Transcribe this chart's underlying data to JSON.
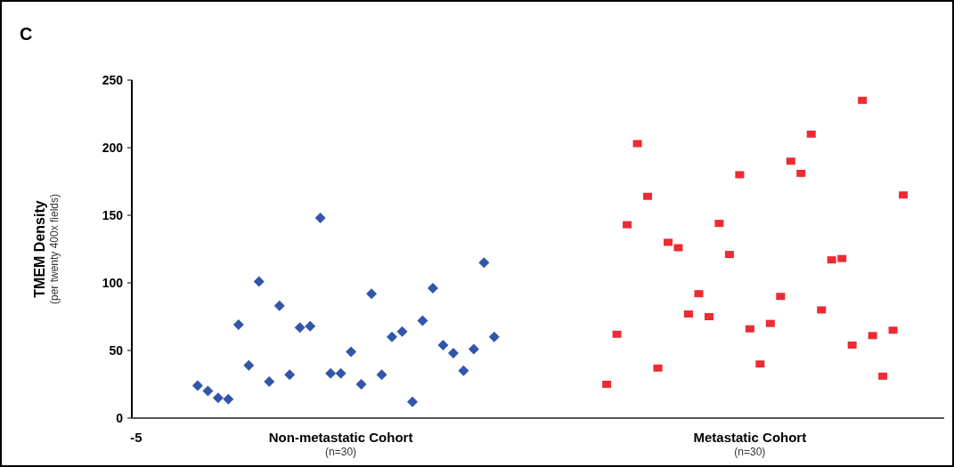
{
  "chart_data": {
    "type": "scatter",
    "title": "C",
    "ylabel": "TMEM Density$_{(per twenty 400x fields)}$",
    "categories": [
      "-5",
      null,
      null,
      null,
      null,
      null,
      null,
      null,
      null,
      null,
      null,
      null,
      null,
      null,
      null,
      null,
      null,
      null,
      null,
      null,
      "Non-metastatic Cohort$_{(n=30)}$",
      null,
      null,
      null,
      null,
      null,
      null,
      null,
      null,
      null,
      null,
      null,
      null,
      null,
      null,
      null,
      null,
      null,
      null,
      null,
      null,
      null,
      null,
      null,
      null,
      null,
      null,
      null,
      null,
      null,
      null,
      null,
      null,
      null,
      null,
      null,
      null,
      null,
      null,
      null,
      "Metastatic Cohort$_{(n=30)}$",
      null,
      null,
      null,
      null,
      null,
      null,
      null,
      null,
      null,
      null,
      null,
      null,
      null,
      null,
      null,
      null,
      null,
      null,
      null
    ],
    "ylim": [
      0,
      250
    ],
    "yticks": [
      0,
      50,
      100,
      150,
      200,
      250
    ],
    "series": [
      {
        "color": "#3355aa",
        "marker": "diamond",
        "values": [
          null,
          null,
          null,
          null,
          null,
          null,
          24,
          20,
          15,
          14,
          69,
          39,
          101,
          27,
          83,
          32,
          67,
          68,
          148,
          33,
          33,
          49,
          25,
          92,
          32,
          60,
          64,
          12,
          72,
          96,
          54,
          48,
          35,
          51,
          115,
          60,
          null,
          null,
          null,
          null,
          null,
          null,
          null,
          null,
          null,
          null,
          null,
          null,
          null,
          null,
          null,
          null,
          null,
          null,
          null,
          null,
          null,
          null,
          null,
          null,
          null,
          null,
          null,
          null,
          null,
          null,
          null,
          null,
          null,
          null,
          null,
          null,
          null,
          null,
          null,
          null,
          null,
          null,
          null,
          null
        ]
      },
      {
        "color": "#ee2a33",
        "marker": "square",
        "values": [
          null,
          null,
          null,
          null,
          null,
          null,
          null,
          null,
          null,
          null,
          null,
          null,
          null,
          null,
          null,
          null,
          null,
          null,
          null,
          null,
          null,
          null,
          null,
          null,
          null,
          null,
          null,
          null,
          null,
          null,
          null,
          null,
          null,
          null,
          null,
          null,
          null,
          null,
          null,
          null,
          null,
          null,
          null,
          null,
          null,
          null,
          25,
          62,
          143,
          203,
          164,
          37,
          130,
          126,
          77,
          92,
          75,
          144,
          121,
          180,
          66,
          40,
          70,
          90,
          190,
          181,
          210,
          80,
          117,
          118,
          54,
          235,
          61,
          31,
          65,
          165,
          null,
          null,
          null,
          null
        ]
      }
    ]
  }
}
